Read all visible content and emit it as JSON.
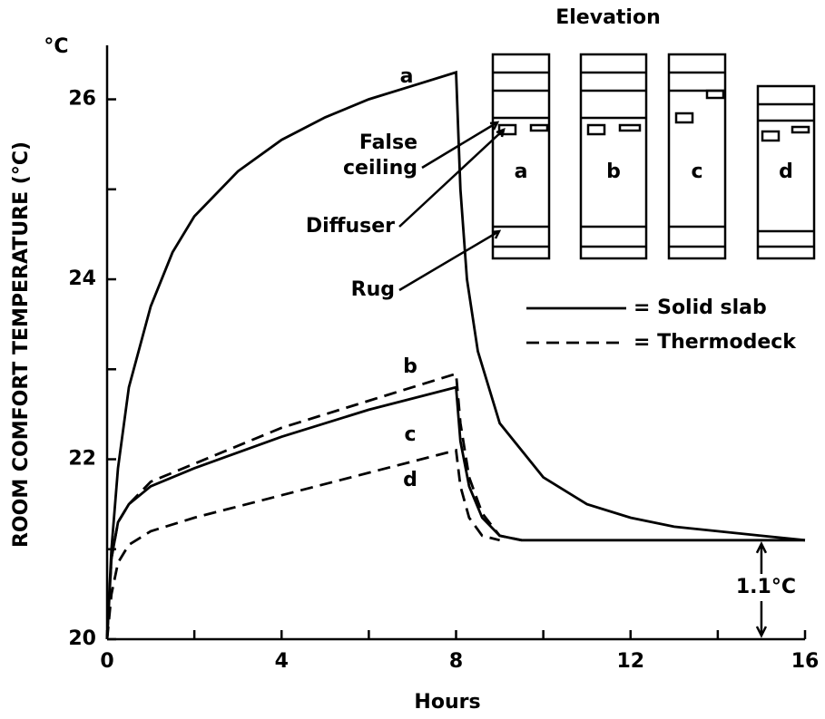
{
  "chart_data": {
    "type": "line",
    "y_label": "ROOM COMFORT TEMPERATURE (°C)",
    "y_unit": "°C",
    "x_label": "Hours",
    "xlim": [
      0,
      16
    ],
    "xticks": [
      0,
      4,
      8,
      12,
      16
    ],
    "xminor": [
      2,
      6,
      10,
      14
    ],
    "ylim": [
      20,
      26.6
    ],
    "yticks": [
      20,
      22,
      24,
      26
    ],
    "yminor": [
      21,
      23,
      25
    ],
    "series": [
      {
        "name": "a",
        "color": "#000",
        "dashed": false,
        "x": [
          0,
          0.1,
          0.25,
          0.5,
          1,
          1.5,
          2,
          3,
          4,
          5,
          6,
          7,
          8,
          8.1,
          8.25,
          8.5,
          9,
          10,
          11,
          12,
          13,
          14,
          15,
          16
        ],
        "values": [
          20,
          21.0,
          21.9,
          22.8,
          23.7,
          24.3,
          24.7,
          25.2,
          25.55,
          25.8,
          26.0,
          26.15,
          26.3,
          25.0,
          24.0,
          23.2,
          22.4,
          21.8,
          21.5,
          21.35,
          21.25,
          21.2,
          21.15,
          21.1
        ]
      },
      {
        "name": "b",
        "color": "#000",
        "dashed": true,
        "x": [
          0,
          0.1,
          0.25,
          0.5,
          1,
          2,
          4,
          6,
          8,
          8.1,
          8.3,
          8.6,
          9,
          9.5
        ],
        "values": [
          20,
          20.9,
          21.3,
          21.5,
          21.75,
          21.95,
          22.35,
          22.65,
          22.95,
          22.4,
          21.8,
          21.4,
          21.15,
          21.1
        ]
      },
      {
        "name": "c",
        "color": "#000",
        "dashed": false,
        "x": [
          0,
          0.1,
          0.25,
          0.5,
          1,
          2,
          4,
          6,
          8,
          8.1,
          8.3,
          8.6,
          9,
          9.5,
          12,
          16
        ],
        "values": [
          20,
          20.9,
          21.3,
          21.5,
          21.7,
          21.9,
          22.25,
          22.55,
          22.8,
          22.2,
          21.7,
          21.35,
          21.15,
          21.1,
          21.1,
          21.1
        ]
      },
      {
        "name": "d",
        "color": "#000",
        "dashed": true,
        "x": [
          0,
          0.1,
          0.25,
          0.5,
          1,
          2,
          4,
          6,
          8,
          8.1,
          8.3,
          8.6,
          9
        ],
        "values": [
          20,
          20.5,
          20.85,
          21.05,
          21.2,
          21.35,
          21.6,
          21.85,
          22.1,
          21.7,
          21.35,
          21.15,
          21.1
        ]
      }
    ],
    "legend": [
      {
        "label": "= Solid slab",
        "dashed": false
      },
      {
        "label": "= Thermodeck",
        "dashed": true
      }
    ],
    "annotations": {
      "difference": "1.1°C",
      "false_ceiling": [
        "False",
        "ceiling"
      ],
      "diffuser": "Diffuser",
      "rug": "Rug"
    },
    "elevation": {
      "title": "Elevation",
      "panels": [
        "a",
        "b",
        "c",
        "d"
      ]
    }
  }
}
